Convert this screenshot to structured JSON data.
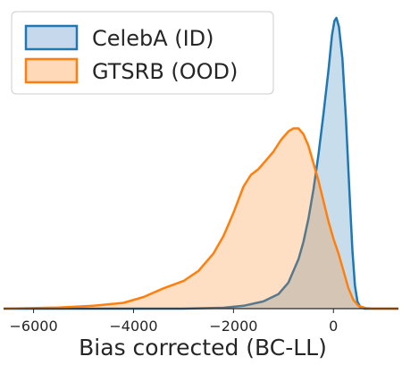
{
  "chart_data": {
    "type": "area",
    "xlabel": "Bias corrected (BC-LL)",
    "ylabel": "",
    "xlim": [
      -6600,
      1300
    ],
    "ylim": [
      0,
      1
    ],
    "xticks": [
      -6000,
      -4000,
      -2000,
      0
    ],
    "xtick_labels": [
      "−6000",
      "−4000",
      "−2000",
      "0"
    ],
    "grid": false,
    "legend_position": "top-left",
    "series": [
      {
        "name": "CelebA (ID)",
        "color": "#1f77b4",
        "fill": "#c5d8ec",
        "points": [
          [
            -6600,
            0
          ],
          [
            -5000,
            0
          ],
          [
            -3000,
            0
          ],
          [
            -2200,
            0.003
          ],
          [
            -1800,
            0.01
          ],
          [
            -1400,
            0.025
          ],
          [
            -1100,
            0.05
          ],
          [
            -900,
            0.09
          ],
          [
            -700,
            0.17
          ],
          [
            -600,
            0.23
          ],
          [
            -500,
            0.31
          ],
          [
            -400,
            0.41
          ],
          [
            -300,
            0.53
          ],
          [
            -200,
            0.67
          ],
          [
            -100,
            0.82
          ],
          [
            -30,
            0.94
          ],
          [
            20,
            0.99
          ],
          [
            60,
            1.0
          ],
          [
            110,
            0.97
          ],
          [
            180,
            0.86
          ],
          [
            250,
            0.65
          ],
          [
            320,
            0.4
          ],
          [
            380,
            0.2
          ],
          [
            430,
            0.08
          ],
          [
            480,
            0.025
          ],
          [
            540,
            0.005
          ],
          [
            620,
            0
          ],
          [
            1300,
            0
          ]
        ]
      },
      {
        "name": "GTSRB (OOD)",
        "color": "#ff7f0e",
        "fill": "#ffd9b8",
        "points": [
          [
            -6600,
            0
          ],
          [
            -5500,
            0.004
          ],
          [
            -4800,
            0.01
          ],
          [
            -4200,
            0.02
          ],
          [
            -3800,
            0.04
          ],
          [
            -3400,
            0.07
          ],
          [
            -3000,
            0.095
          ],
          [
            -2700,
            0.13
          ],
          [
            -2400,
            0.19
          ],
          [
            -2200,
            0.25
          ],
          [
            -2000,
            0.33
          ],
          [
            -1800,
            0.42
          ],
          [
            -1650,
            0.46
          ],
          [
            -1500,
            0.48
          ],
          [
            -1350,
            0.51
          ],
          [
            -1200,
            0.54
          ],
          [
            -1050,
            0.58
          ],
          [
            -900,
            0.61
          ],
          [
            -800,
            0.62
          ],
          [
            -700,
            0.62
          ],
          [
            -600,
            0.6
          ],
          [
            -500,
            0.56
          ],
          [
            -400,
            0.5
          ],
          [
            -300,
            0.44
          ],
          [
            -200,
            0.37
          ],
          [
            -100,
            0.3
          ],
          [
            0,
            0.24
          ],
          [
            100,
            0.19
          ],
          [
            200,
            0.13
          ],
          [
            300,
            0.07
          ],
          [
            400,
            0.03
          ],
          [
            500,
            0.01
          ],
          [
            650,
            0.002
          ],
          [
            800,
            0
          ],
          [
            1300,
            0
          ]
        ]
      }
    ]
  }
}
